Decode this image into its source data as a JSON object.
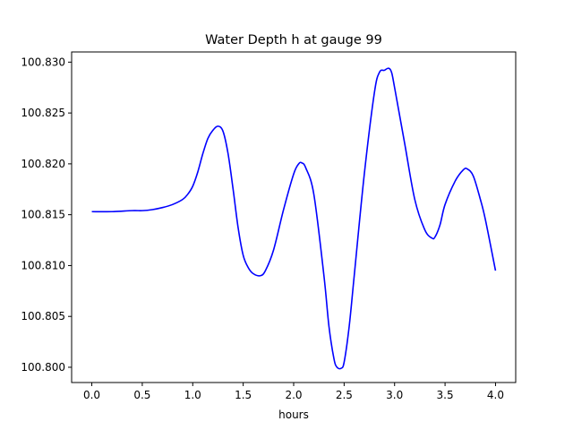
{
  "chart_data": {
    "type": "line",
    "title": "Water Depth h at gauge 99",
    "xlabel": "hours",
    "ylabel": "",
    "xlim": [
      -0.2,
      4.2
    ],
    "ylim": [
      100.7985,
      100.831
    ],
    "grid": false,
    "x_ticks": [
      0.0,
      0.5,
      1.0,
      1.5,
      2.0,
      2.5,
      3.0,
      3.5,
      4.0
    ],
    "x_tick_labels": [
      "0.0",
      "0.5",
      "1.0",
      "1.5",
      "2.0",
      "2.5",
      "3.0",
      "3.5",
      "4.0"
    ],
    "y_ticks": [
      100.8,
      100.805,
      100.81,
      100.815,
      100.82,
      100.825,
      100.83
    ],
    "y_tick_labels": [
      "100.800",
      "100.805",
      "100.810",
      "100.815",
      "100.820",
      "100.825",
      "100.830"
    ],
    "series": [
      {
        "color": "#0000ff",
        "x": [
          0.0,
          0.2,
          0.4,
          0.5,
          0.6,
          0.7,
          0.8,
          0.9,
          0.95,
          1.0,
          1.05,
          1.1,
          1.15,
          1.2,
          1.25,
          1.3,
          1.35,
          1.4,
          1.45,
          1.5,
          1.55,
          1.6,
          1.67,
          1.72,
          1.8,
          1.9,
          2.0,
          2.05,
          2.08,
          2.12,
          2.2,
          2.3,
          2.35,
          2.4,
          2.43,
          2.47,
          2.5,
          2.55,
          2.6,
          2.7,
          2.8,
          2.85,
          2.9,
          2.94,
          2.97,
          3.0,
          3.1,
          3.2,
          3.3,
          3.37,
          3.4,
          3.45,
          3.5,
          3.6,
          3.68,
          3.72,
          3.78,
          3.85,
          3.9,
          4.0
        ],
        "y": [
          100.8153,
          100.8153,
          100.8154,
          100.8154,
          100.8155,
          100.8157,
          100.816,
          100.8165,
          100.817,
          100.8178,
          100.8192,
          100.821,
          100.8225,
          100.8233,
          100.8237,
          100.8232,
          100.821,
          100.8175,
          100.8137,
          100.811,
          100.8098,
          100.8092,
          100.809,
          100.8095,
          100.8115,
          100.8155,
          100.819,
          100.82,
          100.8201,
          100.8196,
          100.817,
          100.809,
          100.804,
          100.8008,
          100.8,
          100.7999,
          100.8005,
          100.804,
          100.809,
          100.819,
          100.827,
          100.829,
          100.8292,
          100.8294,
          100.829,
          100.8275,
          100.822,
          100.8165,
          100.8135,
          100.8127,
          100.8128,
          100.814,
          100.816,
          100.8183,
          100.8194,
          100.8195,
          100.8188,
          100.8165,
          100.8145,
          100.8095
        ]
      }
    ]
  }
}
